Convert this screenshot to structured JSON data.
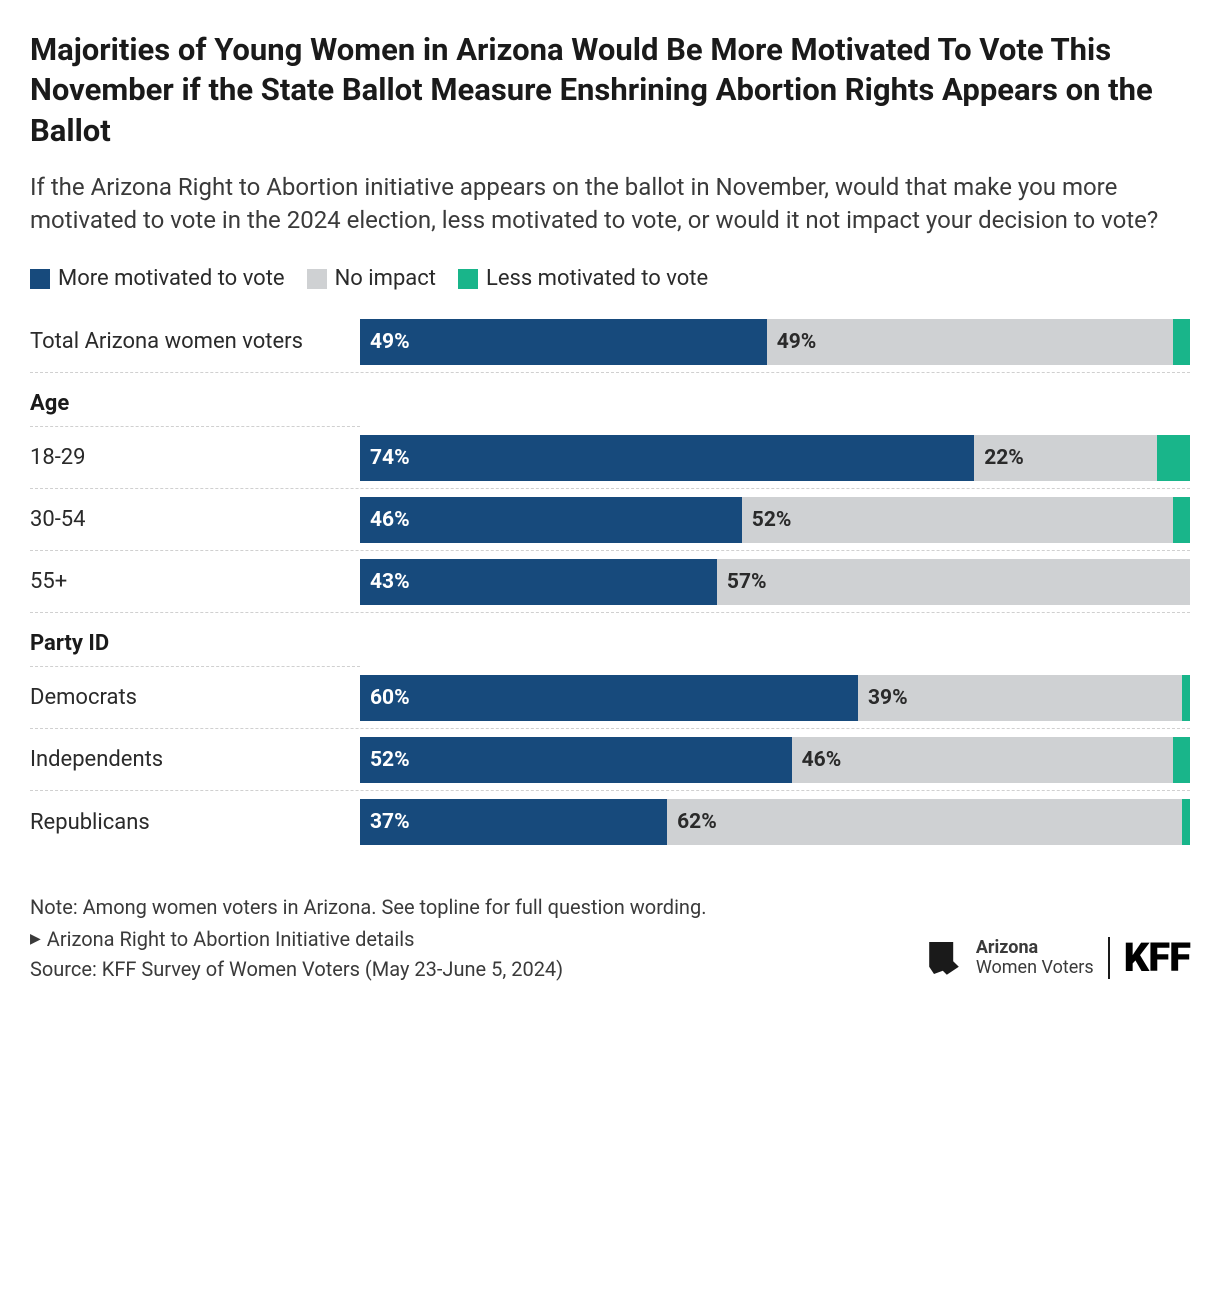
{
  "title": "Majorities of Young Women in Arizona Would Be More Motivated To Vote This November if the State Ballot Measure Enshrining Abortion Rights Appears on the Ballot",
  "subtitle": "If the Arizona Right to Abortion initiative appears on the ballot in November, would that make you more motivated to vote in the 2024 election, less motivated to vote, or would it not impact your decision to vote?",
  "legend": {
    "items": [
      {
        "label": "More motivated to vote",
        "color": "#174a7c"
      },
      {
        "label": "No impact",
        "color": "#cfd1d3"
      },
      {
        "label": "Less motivated to vote",
        "color": "#19b58a"
      }
    ]
  },
  "chart": {
    "type": "stacked-bar-horizontal",
    "label_threshold_pct": 10,
    "series": [
      {
        "key": "more",
        "color": "#174a7c",
        "text_color": "#ffffff"
      },
      {
        "key": "none",
        "color": "#cfd1d3",
        "text_color": "#2a2a2a"
      },
      {
        "key": "less",
        "color": "#19b58a",
        "text_color": "#ffffff"
      }
    ],
    "sections": [
      {
        "heading": null,
        "rows": [
          {
            "label": "Total Arizona women voters",
            "values": {
              "more": 49,
              "none": 49,
              "less": 2
            }
          }
        ]
      },
      {
        "heading": "Age",
        "rows": [
          {
            "label": "18-29",
            "values": {
              "more": 74,
              "none": 22,
              "less": 4
            }
          },
          {
            "label": "30-54",
            "values": {
              "more": 46,
              "none": 52,
              "less": 2
            }
          },
          {
            "label": "55+",
            "values": {
              "more": 43,
              "none": 57,
              "less": 0
            }
          }
        ]
      },
      {
        "heading": "Party ID",
        "rows": [
          {
            "label": "Democrats",
            "values": {
              "more": 60,
              "none": 39,
              "less": 1
            }
          },
          {
            "label": "Independents",
            "values": {
              "more": 52,
              "none": 46,
              "less": 2
            }
          },
          {
            "label": "Republicans",
            "values": {
              "more": 37,
              "none": 62,
              "less": 1
            }
          }
        ]
      }
    ]
  },
  "footer": {
    "note": "Note: Among women voters in Arizona. See topline for full question wording.",
    "disclosure": "Arizona Right to Abortion Initiative details",
    "source": "Source: KFF Survey of Women Voters (May 23-June 5, 2024)"
  },
  "branding": {
    "line1": "Arizona",
    "line2": "Women Voters",
    "org": "KFF"
  }
}
